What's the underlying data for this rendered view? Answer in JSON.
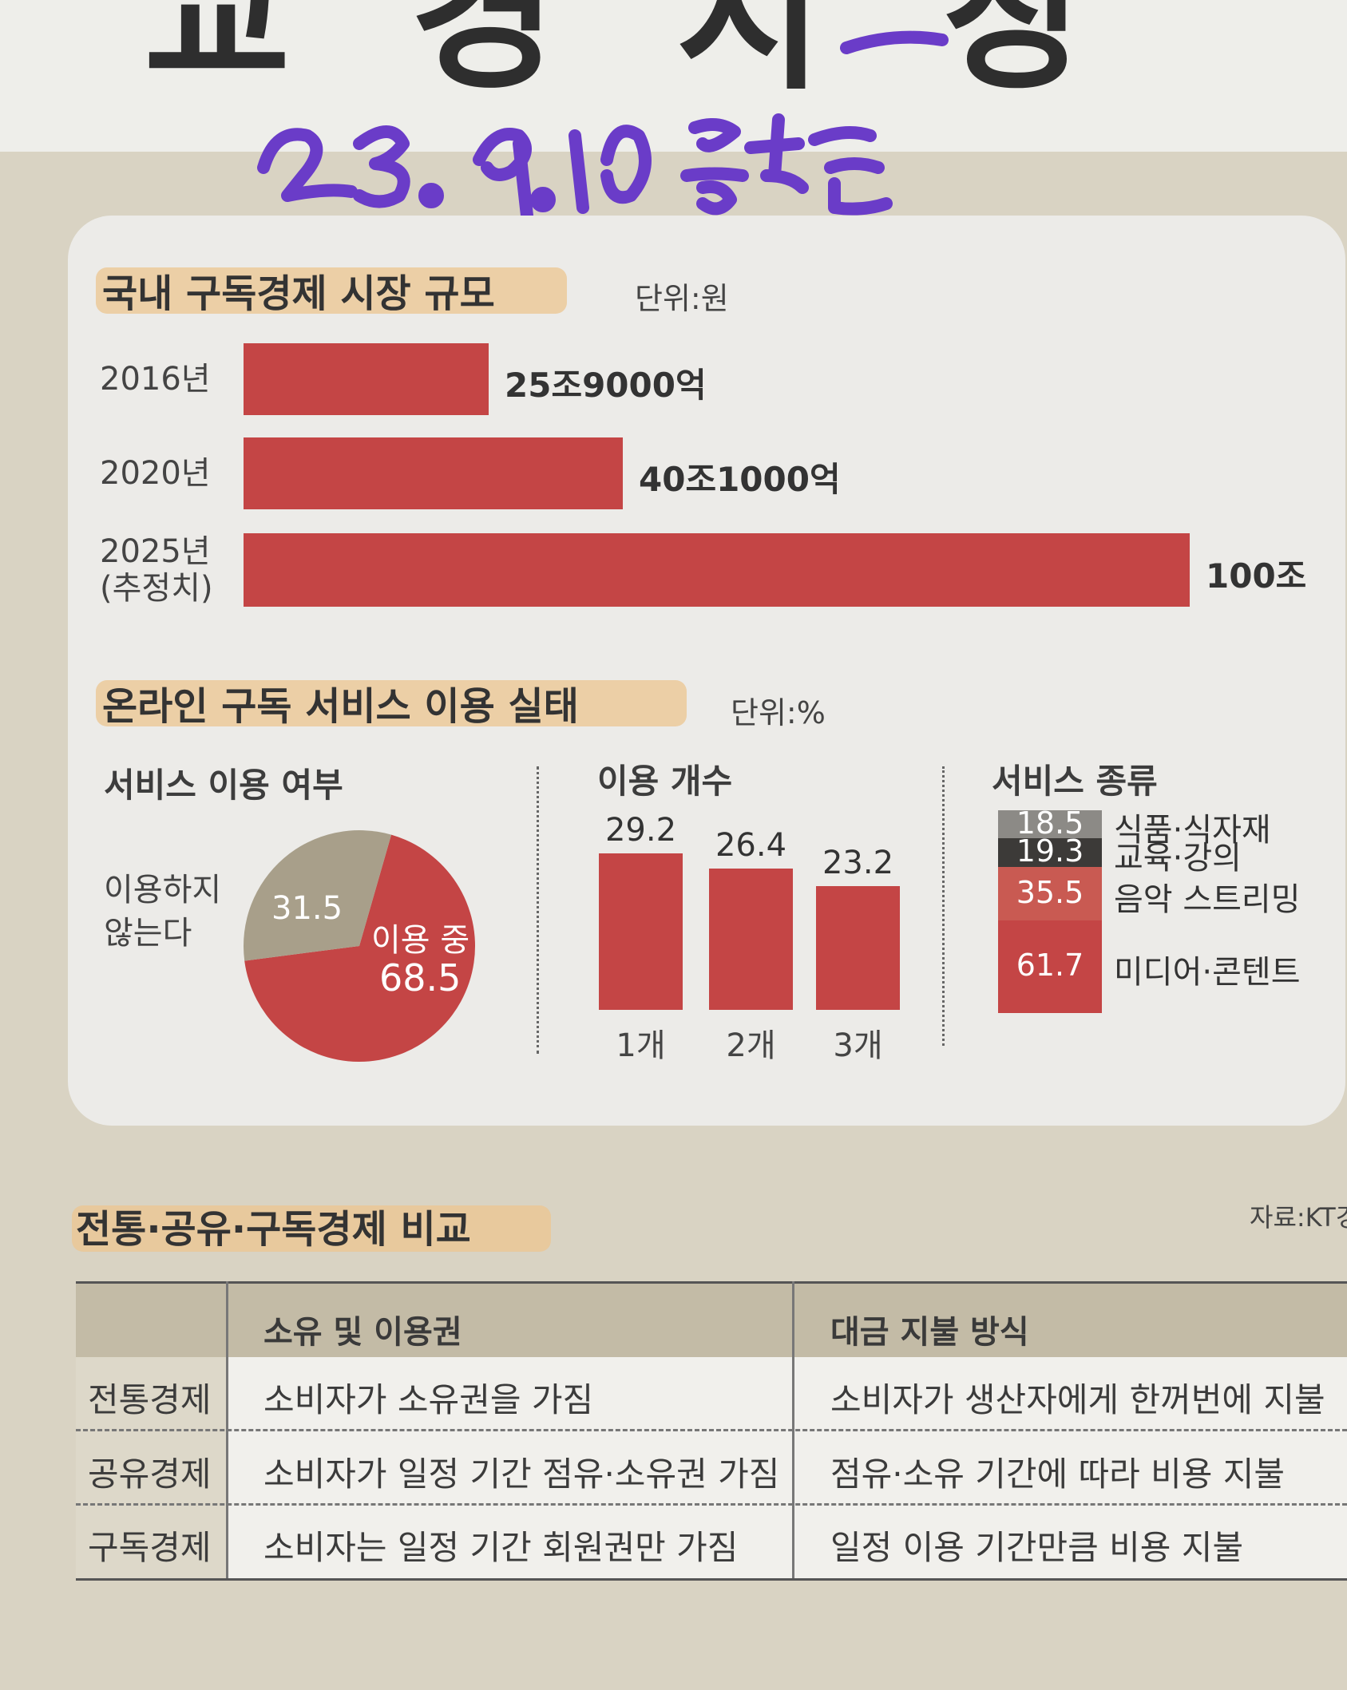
{
  "handwritten_note": "23.9.10 중앙선",
  "chart_data": [
    {
      "type": "bar",
      "orientation": "horizontal",
      "title": "국내 구독경제 시장 규모",
      "unit_label": "단위:원",
      "categories": [
        "2016년",
        "2020년",
        "2025년 (추정치)"
      ],
      "category_lines": [
        [
          "2016년"
        ],
        [
          "2020년"
        ],
        [
          "2025년",
          "(추정치)"
        ]
      ],
      "values": [
        25.9,
        40.1,
        100
      ],
      "value_unit": "조원",
      "value_labels": [
        "25조9000억",
        "40조1000억",
        "100조"
      ],
      "bar_color": "#c44545"
    },
    {
      "type": "pie",
      "section_title": "온라인 구독 서비스 이용 실태",
      "unit_label": "단위:%",
      "title": "서비스 이용 여부",
      "slices": [
        {
          "label": "이용 중",
          "value": 68.5,
          "color": "#c44545"
        },
        {
          "label": "이용하지 않는다",
          "label_lines": [
            "이용하지",
            "않는다"
          ],
          "value": 31.5,
          "color": "#a89f8a"
        }
      ]
    },
    {
      "type": "bar",
      "title": "이용 개수",
      "categories": [
        "1개",
        "2개",
        "3개"
      ],
      "values": [
        29.2,
        26.4,
        23.2
      ],
      "bar_color": "#c44545"
    },
    {
      "type": "bar",
      "stacked": true,
      "title": "서비스 종류",
      "categories": [
        "식품·식자재",
        "교육·강의",
        "음악 스트리밍",
        "미디어·콘텐트"
      ],
      "values": [
        18.5,
        19.3,
        35.5,
        61.7
      ],
      "colors": [
        "#8c8a86",
        "#3c3a38",
        "#c95a52",
        "#c44545"
      ]
    },
    {
      "type": "table",
      "title": "전통·공유·구독경제 비교",
      "source": "자료:KT경",
      "columns": [
        "",
        "소유 및 이용권",
        "대금 지불 방식"
      ],
      "rows": [
        [
          "전통경제",
          "소비자가 소유권을 가짐",
          "소비자가 생산자에게 한꺼번에 지불"
        ],
        [
          "공유경제",
          "소비자가 일정 기간 점유·소유권 가짐",
          "점유·소유 기간에 따라 비용 지불"
        ],
        [
          "구독경제",
          "소비자는 일정 기간 회원권만 가짐",
          "일정 이용 기간만큼 비용 지불"
        ]
      ]
    }
  ]
}
